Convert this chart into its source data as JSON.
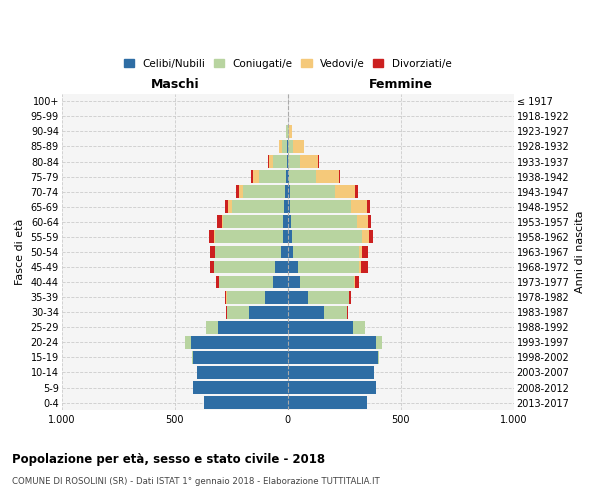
{
  "age_groups": [
    "0-4",
    "5-9",
    "10-14",
    "15-19",
    "20-24",
    "25-29",
    "30-34",
    "35-39",
    "40-44",
    "45-49",
    "50-54",
    "55-59",
    "60-64",
    "65-69",
    "70-74",
    "75-79",
    "80-84",
    "85-89",
    "90-94",
    "95-99",
    "100+"
  ],
  "birth_years": [
    "2013-2017",
    "2008-2012",
    "2003-2007",
    "1998-2002",
    "1993-1997",
    "1988-1992",
    "1983-1987",
    "1978-1982",
    "1973-1977",
    "1968-1972",
    "1963-1967",
    "1958-1962",
    "1953-1957",
    "1948-1952",
    "1943-1947",
    "1938-1942",
    "1933-1937",
    "1928-1932",
    "1923-1927",
    "1918-1922",
    "≤ 1917"
  ],
  "maschi": {
    "celibe": [
      370,
      420,
      400,
      420,
      430,
      310,
      170,
      100,
      65,
      55,
      30,
      22,
      20,
      18,
      12,
      8,
      4,
      2,
      1,
      0,
      0
    ],
    "coniugato": [
      0,
      0,
      2,
      5,
      25,
      50,
      100,
      170,
      240,
      270,
      290,
      300,
      265,
      230,
      185,
      120,
      60,
      25,
      5,
      1,
      0
    ],
    "vedovo": [
      0,
      0,
      0,
      0,
      0,
      0,
      0,
      1,
      1,
      2,
      3,
      5,
      8,
      15,
      20,
      25,
      20,
      10,
      2,
      0,
      0
    ],
    "divorziato": [
      0,
      0,
      0,
      0,
      0,
      2,
      5,
      8,
      12,
      18,
      20,
      22,
      18,
      15,
      12,
      8,
      5,
      0,
      0,
      0,
      0
    ]
  },
  "femmine": {
    "celibe": [
      350,
      390,
      380,
      400,
      390,
      290,
      160,
      90,
      55,
      45,
      25,
      18,
      15,
      12,
      8,
      5,
      3,
      2,
      1,
      0,
      0
    ],
    "coniugato": [
      0,
      0,
      2,
      5,
      25,
      50,
      100,
      180,
      240,
      270,
      290,
      310,
      290,
      270,
      200,
      120,
      50,
      20,
      5,
      1,
      0
    ],
    "vedovo": [
      0,
      0,
      0,
      0,
      0,
      0,
      1,
      2,
      4,
      8,
      15,
      30,
      50,
      70,
      90,
      100,
      80,
      50,
      15,
      2,
      0
    ],
    "divorziato": [
      0,
      0,
      0,
      0,
      0,
      2,
      5,
      10,
      15,
      30,
      25,
      20,
      15,
      12,
      12,
      8,
      5,
      2,
      0,
      0,
      0
    ]
  },
  "colors": {
    "celibe": "#2e6da4",
    "coniugato": "#b8d4a0",
    "vedovo": "#f5c97a",
    "divorziato": "#cc2020"
  },
  "legend_labels": [
    "Celibi/Nubili",
    "Coniugati/e",
    "Vedovi/e",
    "Divorziati/e"
  ],
  "title": "Popolazione per età, sesso e stato civile - 2018",
  "subtitle": "COMUNE DI ROSOLINI (SR) - Dati ISTAT 1° gennaio 2018 - Elaborazione TUTTITALIA.IT",
  "ylabel_left": "Fasce di età",
  "ylabel_right": "Anni di nascita",
  "xlabel_left": "Maschi",
  "xlabel_right": "Femmine",
  "xlim": 1000,
  "bg_color": "#ffffff",
  "plot_bg": "#f5f5f5"
}
